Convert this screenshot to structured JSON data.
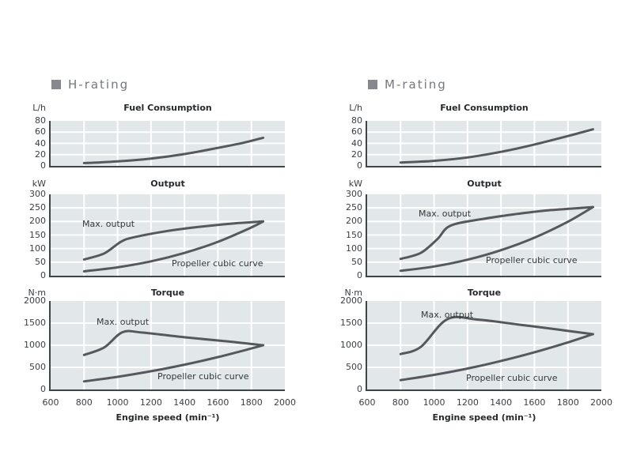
{
  "colors": {
    "plot_bg": "#e2e8ea",
    "grid": "#ffffff",
    "axis": "#404548",
    "curve": "#55595d",
    "title_text": "#26292b",
    "tick_text": "#3b3f43",
    "header_text": "#74787c",
    "header_bullet": "#85898d"
  },
  "columns": [
    {
      "header": "H-rating"
    },
    {
      "header": "M-rating"
    }
  ],
  "x_axis": {
    "label": "Engine speed (min⁻¹)",
    "range": [
      600,
      2000
    ],
    "ticks": [
      600,
      800,
      1000,
      1200,
      1400,
      1600,
      1800,
      2000
    ],
    "gridlines": [
      800,
      1000,
      1200,
      1400,
      1600,
      1800
    ]
  },
  "chart_data": [
    {
      "id": "h-fuel-consumption",
      "type": "line",
      "title": "Fuel Consumption",
      "y_unit": "L/h",
      "xlabel": "Engine speed (min⁻¹)",
      "xlim": [
        600,
        2000
      ],
      "ylim": [
        0,
        80
      ],
      "yticks": [
        0,
        20,
        40,
        60,
        80
      ],
      "grid": true,
      "series": [
        {
          "name": "fuel-consumption",
          "label": "",
          "points": [
            [
              800,
              5
            ],
            [
              1000,
              8
            ],
            [
              1200,
              13
            ],
            [
              1400,
              21
            ],
            [
              1600,
              32
            ],
            [
              1750,
              41
            ],
            [
              1870,
              50
            ]
          ]
        }
      ]
    },
    {
      "id": "h-output",
      "type": "line",
      "title": "Output",
      "y_unit": "kW",
      "xlabel": "Engine speed (min⁻¹)",
      "xlim": [
        600,
        2000
      ],
      "ylim": [
        0,
        300
      ],
      "yticks": [
        0,
        50,
        100,
        150,
        200,
        250,
        300
      ],
      "grid": true,
      "series": [
        {
          "name": "max-output",
          "label": "Max. output",
          "label_pos": [
            40,
            31
          ],
          "points": [
            [
              800,
              60
            ],
            [
              920,
              82
            ],
            [
              1020,
              125
            ],
            [
              1100,
              142
            ],
            [
              1300,
              165
            ],
            [
              1500,
              181
            ],
            [
              1700,
              193
            ],
            [
              1870,
              200
            ]
          ]
        },
        {
          "name": "propeller-cubic-curve",
          "label": "Propeller cubic curve",
          "label_pos": [
            153,
            81
          ],
          "points": [
            [
              800,
              16
            ],
            [
              1000,
              31
            ],
            [
              1200,
              53
            ],
            [
              1400,
              84
            ],
            [
              1600,
              125
            ],
            [
              1800,
              178
            ],
            [
              1870,
              200
            ]
          ]
        }
      ]
    },
    {
      "id": "h-torque",
      "type": "line",
      "title": "Torque",
      "y_unit": "N·m",
      "xlabel": "Engine speed (min⁻¹)",
      "xlim": [
        600,
        2000
      ],
      "ylim": [
        0,
        2000
      ],
      "yticks": [
        0,
        500,
        1000,
        1500,
        2000
      ],
      "grid": true,
      "series": [
        {
          "name": "max-output",
          "label": "Max. output",
          "label_pos": [
            58,
            20
          ],
          "points": [
            [
              800,
              780
            ],
            [
              920,
              950
            ],
            [
              1030,
              1295
            ],
            [
              1150,
              1285
            ],
            [
              1400,
              1180
            ],
            [
              1650,
              1090
            ],
            [
              1870,
              1000
            ]
          ]
        },
        {
          "name": "propeller-cubic-curve",
          "label": "Propeller cubic curve",
          "label_pos": [
            135,
            89
          ],
          "points": [
            [
              800,
              183
            ],
            [
              1000,
              286
            ],
            [
              1200,
              412
            ],
            [
              1400,
              560
            ],
            [
              1600,
              732
            ],
            [
              1800,
              926
            ],
            [
              1870,
              1000
            ]
          ]
        }
      ]
    },
    {
      "id": "m-fuel-consumption",
      "type": "line",
      "title": "Fuel Consumption",
      "y_unit": "L/h",
      "xlabel": "Engine speed (min⁻¹)",
      "xlim": [
        600,
        2000
      ],
      "ylim": [
        0,
        80
      ],
      "yticks": [
        0,
        20,
        40,
        60,
        80
      ],
      "grid": true,
      "series": [
        {
          "name": "fuel-consumption",
          "label": "",
          "points": [
            [
              800,
              6
            ],
            [
              1000,
              9
            ],
            [
              1200,
              15
            ],
            [
              1400,
              25
            ],
            [
              1600,
              38
            ],
            [
              1800,
              53
            ],
            [
              1950,
              65
            ]
          ]
        }
      ]
    },
    {
      "id": "m-output",
      "type": "line",
      "title": "Output",
      "y_unit": "kW",
      "xlabel": "Engine speed (min⁻¹)",
      "xlim": [
        600,
        2000
      ],
      "ylim": [
        0,
        300
      ],
      "yticks": [
        0,
        50,
        100,
        150,
        200,
        250,
        300
      ],
      "grid": true,
      "series": [
        {
          "name": "max-output",
          "label": "Max. output",
          "label_pos": [
            65,
            18
          ],
          "points": [
            [
              800,
              62
            ],
            [
              920,
              84
            ],
            [
              1020,
              135
            ],
            [
              1100,
              185
            ],
            [
              1300,
              210
            ],
            [
              1500,
              228
            ],
            [
              1700,
              242
            ],
            [
              1950,
              253
            ]
          ]
        },
        {
          "name": "propeller-cubic-curve",
          "label": "Propeller cubic curve",
          "label_pos": [
            150,
            77
          ],
          "points": [
            [
              800,
              18
            ],
            [
              1000,
              34
            ],
            [
              1200,
              59
            ],
            [
              1400,
              94
            ],
            [
              1600,
              140
            ],
            [
              1800,
              199
            ],
            [
              1950,
              253
            ]
          ]
        }
      ]
    },
    {
      "id": "m-torque",
      "type": "line",
      "title": "Torque",
      "y_unit": "N·m",
      "xlabel": "Engine speed (min⁻¹)",
      "xlim": [
        600,
        2000
      ],
      "ylim": [
        0,
        2000
      ],
      "yticks": [
        0,
        500,
        1000,
        1500,
        2000
      ],
      "grid": true,
      "series": [
        {
          "name": "max-output",
          "label": "Max. output",
          "label_pos": [
            68,
            11
          ],
          "points": [
            [
              800,
              800
            ],
            [
              920,
              960
            ],
            [
              1080,
              1590
            ],
            [
              1260,
              1580
            ],
            [
              1500,
              1470
            ],
            [
              1750,
              1350
            ],
            [
              1950,
              1250
            ]
          ]
        },
        {
          "name": "propeller-cubic-curve",
          "label": "Propeller cubic curve",
          "label_pos": [
            125,
            91
          ],
          "points": [
            [
              800,
              210
            ],
            [
              1000,
              330
            ],
            [
              1200,
              473
            ],
            [
              1400,
              644
            ],
            [
              1600,
              841
            ],
            [
              1800,
              1065
            ],
            [
              1950,
              1250
            ]
          ]
        }
      ]
    }
  ]
}
